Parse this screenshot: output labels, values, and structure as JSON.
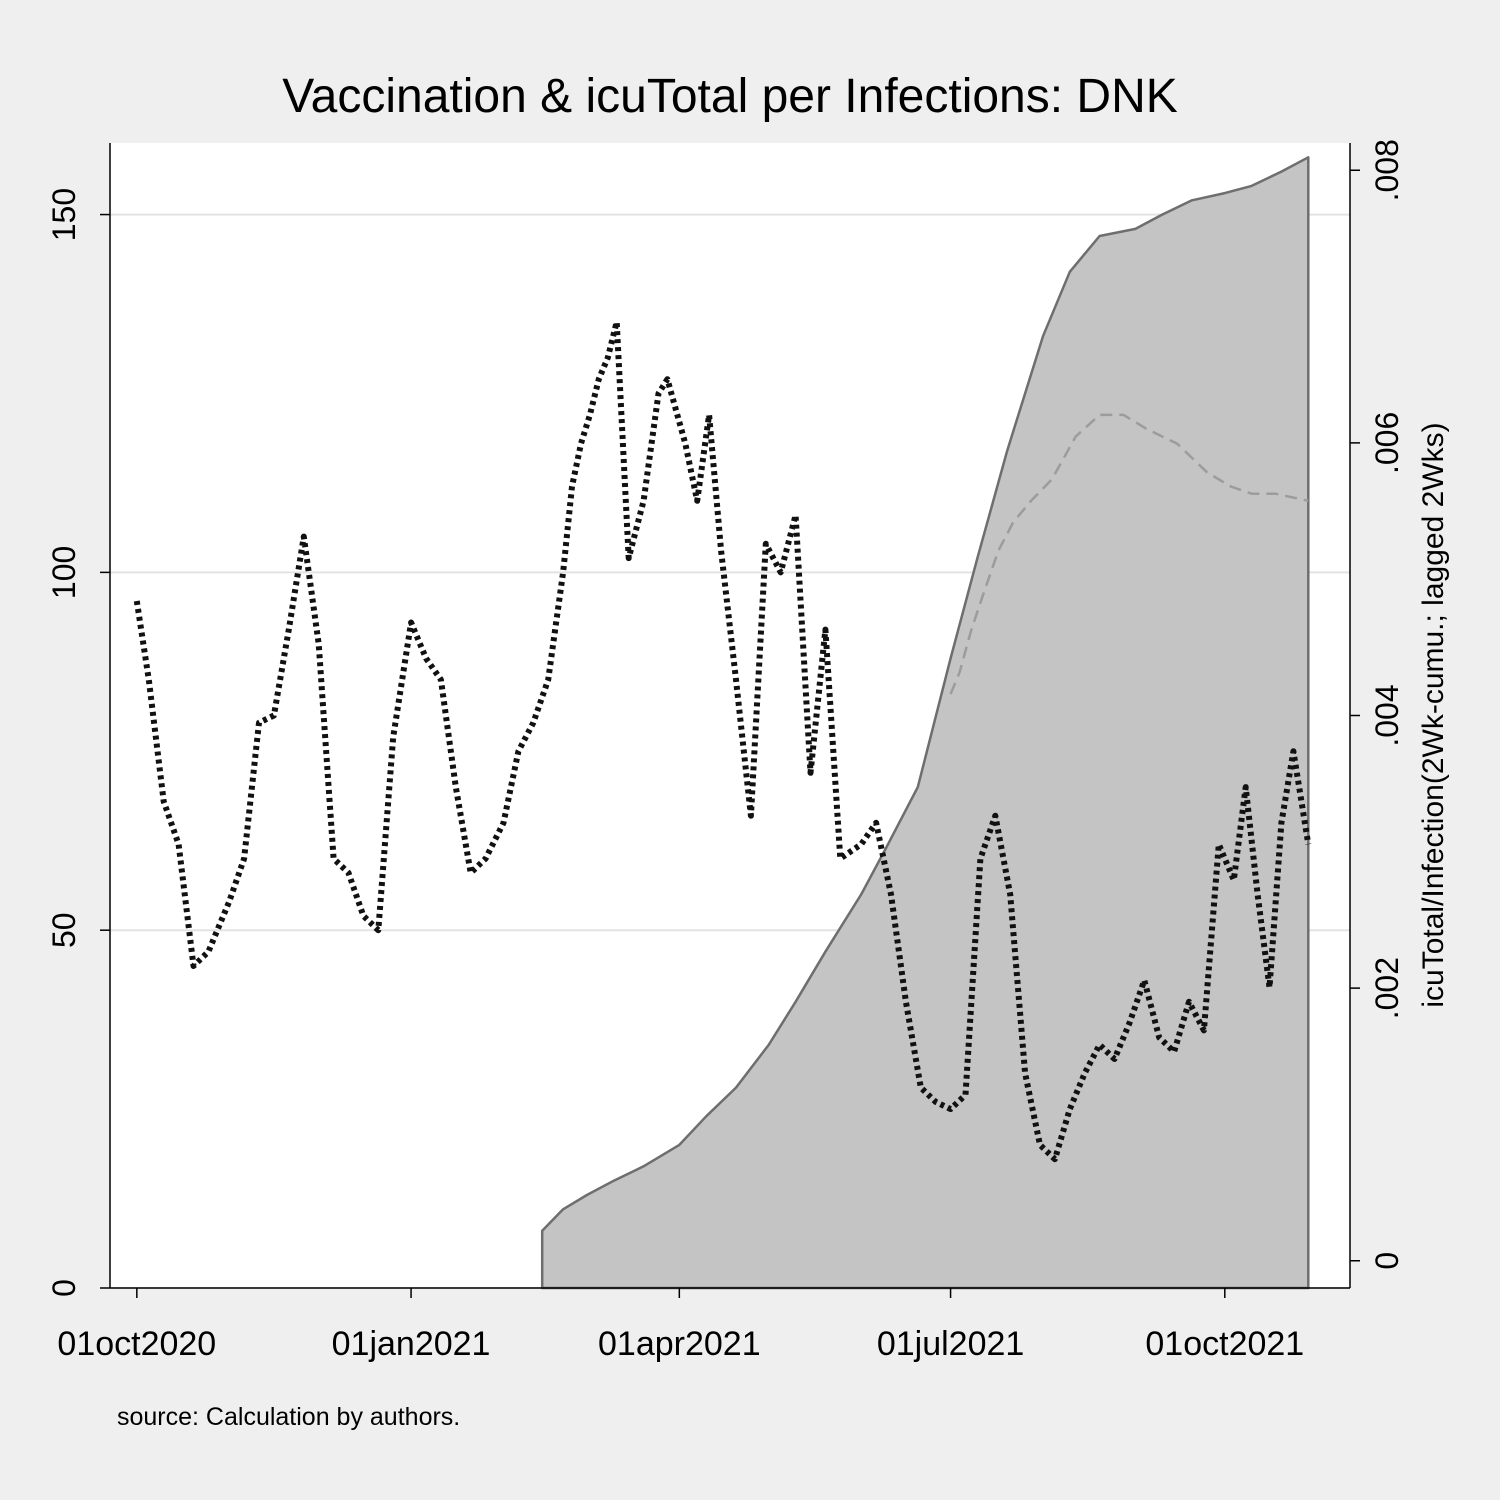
{
  "chart_data": {
    "type": "area",
    "title": "Vaccination & icuTotal per Infections: DNK",
    "note": "source: Calculation by authors.",
    "xlabel": "",
    "ylabel": "",
    "ylabel_right": "icuTotal/Infection(2Wk-cumu.; lagged 2Wks)",
    "x_ticks": [
      "01oct2020",
      "01jan2021",
      "01apr2021",
      "01jul2021",
      "01oct2021"
    ],
    "y_left": {
      "lim": [
        0,
        160
      ],
      "ticks": [
        "0",
        "50",
        "100",
        "150"
      ],
      "tick_values": [
        0,
        50,
        100,
        150
      ]
    },
    "y_right": {
      "lim": [
        -0.0002,
        0.0082
      ],
      "ticks": [
        "0",
        ".002",
        ".004",
        ".006",
        ".008"
      ],
      "tick_values": [
        0,
        0.002,
        0.004,
        0.006,
        0.008
      ]
    },
    "grid": true,
    "legend": "none",
    "colors": {
      "area_fill": "#c4c4c4",
      "area_edge": "#6e6e6e",
      "dashed_line": "#9c9c9c",
      "dotted_line": "#111111",
      "grid": "#e3e3e3",
      "background": "#efefef",
      "plot_bg": "#ffffff"
    },
    "series": [
      {
        "style": "area",
        "axis": "left",
        "x": [
          "2021-02-14",
          "2021-02-21",
          "2021-03-01",
          "2021-03-10",
          "2021-03-20",
          "2021-04-01",
          "2021-04-10",
          "2021-04-20",
          "2021-05-01",
          "2021-05-10",
          "2021-05-20",
          "2021-06-01",
          "2021-06-10",
          "2021-06-20",
          "2021-07-01",
          "2021-07-10",
          "2021-07-20",
          "2021-08-01",
          "2021-08-10",
          "2021-08-20",
          "2021-09-01",
          "2021-09-10",
          "2021-09-20",
          "2021-10-01",
          "2021-10-10",
          "2021-10-20",
          "2021-10-29"
        ],
        "y": [
          8,
          11,
          13,
          15,
          17,
          20,
          24,
          28,
          34,
          40,
          47,
          55,
          62,
          70,
          88,
          102,
          117,
          133,
          142,
          147,
          148,
          150,
          152,
          153,
          154,
          156,
          158
        ]
      },
      {
        "style": "dashed",
        "axis": "left",
        "x": [
          "2021-07-01",
          "2021-07-04",
          "2021-07-08",
          "2021-07-12",
          "2021-07-17",
          "2021-07-22",
          "2021-07-28",
          "2021-08-04",
          "2021-08-12",
          "2021-08-20",
          "2021-08-28",
          "2021-09-05",
          "2021-09-15",
          "2021-09-25",
          "2021-10-03",
          "2021-10-10",
          "2021-10-18",
          "2021-10-29"
        ],
        "y": [
          83,
          86,
          92,
          97,
          103,
          107,
          110,
          113,
          119,
          122,
          122,
          120,
          118,
          114,
          112,
          111,
          111,
          110
        ]
      },
      {
        "style": "dotted",
        "axis": "left",
        "x": [
          "2020-10-01",
          "2020-10-05",
          "2020-10-10",
          "2020-10-15",
          "2020-10-20",
          "2020-10-25",
          "2020-11-01",
          "2020-11-06",
          "2020-11-11",
          "2020-11-16",
          "2020-11-21",
          "2020-11-26",
          "2020-12-01",
          "2020-12-06",
          "2020-12-11",
          "2020-12-16",
          "2020-12-21",
          "2020-12-26",
          "2021-01-01",
          "2021-01-06",
          "2021-01-11",
          "2021-01-16",
          "2021-01-21",
          "2021-01-26",
          "2021-02-01",
          "2021-02-06",
          "2021-02-11",
          "2021-02-16",
          "2021-02-21",
          "2021-02-24",
          "2021-02-27",
          "2021-03-02",
          "2021-03-05",
          "2021-03-08",
          "2021-03-11",
          "2021-03-15",
          "2021-03-20",
          "2021-03-25",
          "2021-03-28",
          "2021-04-03",
          "2021-04-07",
          "2021-04-11",
          "2021-04-15",
          "2021-04-20",
          "2021-04-25",
          "2021-04-30",
          "2021-05-05",
          "2021-05-10",
          "2021-05-15",
          "2021-05-20",
          "2021-05-25",
          "2021-06-01",
          "2021-06-06",
          "2021-06-11",
          "2021-06-16",
          "2021-06-21",
          "2021-06-26",
          "2021-07-01",
          "2021-07-06",
          "2021-07-11",
          "2021-07-16",
          "2021-07-21",
          "2021-07-26",
          "2021-07-31",
          "2021-08-05",
          "2021-08-10",
          "2021-08-15",
          "2021-08-20",
          "2021-08-25",
          "2021-08-30",
          "2021-09-04",
          "2021-09-09",
          "2021-09-14",
          "2021-09-19",
          "2021-09-24",
          "2021-09-29",
          "2021-10-04",
          "2021-10-08",
          "2021-10-12",
          "2021-10-16",
          "2021-10-20",
          "2021-10-24",
          "2021-10-29"
        ],
        "y": [
          96,
          85,
          68,
          62,
          45,
          47,
          54,
          60,
          79,
          80,
          92,
          105,
          90,
          60,
          58,
          52,
          50,
          77,
          93,
          88,
          85,
          70,
          58,
          60,
          65,
          75,
          79,
          85,
          100,
          112,
          118,
          122,
          127,
          130,
          135,
          102,
          110,
          125,
          127,
          118,
          110,
          122,
          103,
          85,
          66,
          104,
          100,
          108,
          72,
          92,
          60,
          62,
          65,
          55,
          40,
          28,
          26,
          25,
          27,
          60,
          66,
          55,
          30,
          20,
          18,
          25,
          30,
          34,
          32,
          37,
          43,
          35,
          33,
          40,
          36,
          62,
          57,
          70,
          55,
          42,
          65,
          75,
          62
        ]
      }
    ]
  }
}
